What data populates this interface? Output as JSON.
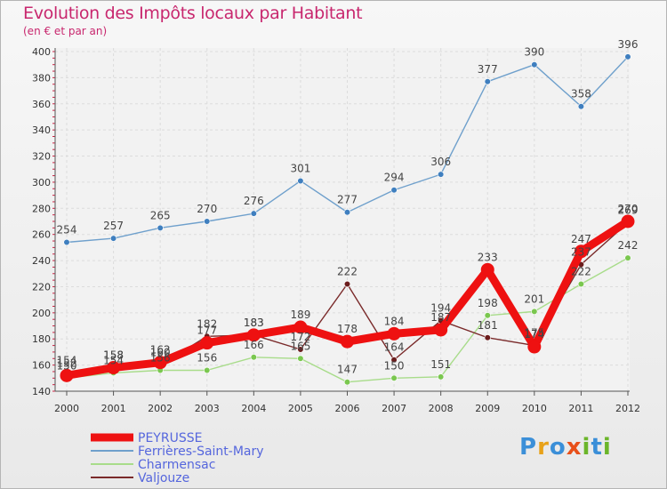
{
  "header": {
    "title": "Evolution des Impôts locaux par Habitant",
    "subtitle": "(en € et par an)"
  },
  "logo": {
    "letters": [
      "P",
      "r",
      "o",
      "x",
      "i",
      "t",
      "i"
    ],
    "colors": [
      "#3b8fd8",
      "#e8a21a",
      "#3b8fd8",
      "#e8501a",
      "#6bb52a",
      "#3b8fd8",
      "#6bb52a"
    ]
  },
  "chart_data": {
    "type": "line",
    "title": "Evolution des Impôts locaux par Habitant",
    "subtitle": "(en € et par an)",
    "xlabel": "",
    "ylabel": "",
    "ylim": [
      140,
      400
    ],
    "yticks": [
      140,
      160,
      180,
      200,
      220,
      240,
      260,
      280,
      300,
      320,
      340,
      360,
      380,
      400
    ],
    "categories": [
      "2000",
      "2001",
      "2002",
      "2003",
      "2004",
      "2005",
      "2006",
      "2007",
      "2008",
      "2009",
      "2010",
      "2011",
      "2012"
    ],
    "grid": true,
    "legend_position": "bottom-left",
    "series": [
      {
        "name": "Ferrières-Saint-Mary",
        "color": "#6fa0cc",
        "marker": "#3f7fbf",
        "weight": "thin",
        "values": [
          254,
          257,
          265,
          270,
          276,
          301,
          277,
          294,
          306,
          377,
          390,
          358,
          396
        ]
      },
      {
        "name": "Charmensac",
        "color": "#a8dc8a",
        "marker": "#7ac74f",
        "weight": "thin",
        "values": [
          150,
          154,
          156,
          156,
          166,
          165,
          147,
          150,
          151,
          198,
          201,
          222,
          242
        ]
      },
      {
        "name": "Valjouze",
        "color": "#7a2a2a",
        "marker": "#6b1d1d",
        "weight": "thin",
        "values": [
          154,
          158,
          160,
          182,
          183,
          172,
          222,
          164,
          194,
          181,
          175,
          237,
          269
        ]
      },
      {
        "name": "PEYRUSSE",
        "color": "#ee1111",
        "marker": "#ee1111",
        "weight": "thick",
        "values": [
          152,
          158,
          162,
          177,
          183,
          189,
          178,
          184,
          187,
          233,
          174,
          247,
          270
        ]
      }
    ]
  }
}
